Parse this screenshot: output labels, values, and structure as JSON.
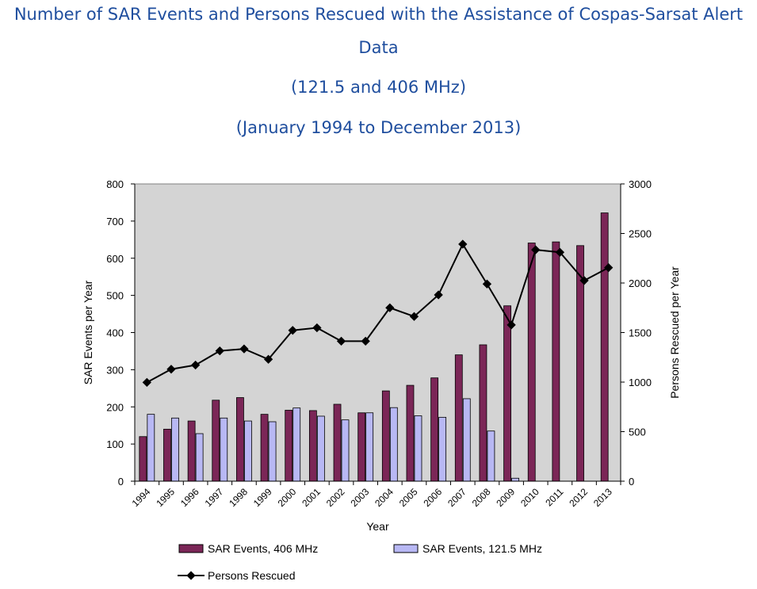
{
  "titles": {
    "line1": "Number of SAR Events and Persons Rescued with the Assistance of Cospas-Sarsat Alert",
    "line2": "Data",
    "line3": "(121.5 and 406 MHz)",
    "line4": "(January 1994 to December 2013)"
  },
  "colors": {
    "title": "#1f4e9e",
    "plot_bg": "#d4d4d4",
    "bar_406": "#7b2657",
    "bar_121": "#b8b8f4",
    "line": "#000000"
  },
  "chart_data": {
    "type": "bar",
    "xlabel": "Year",
    "ylabel": "SAR Events per Year",
    "y2label": "Persons Rescued per Year",
    "ylim": [
      0,
      800
    ],
    "y2lim": [
      0,
      3000
    ],
    "yticks": [
      0,
      100,
      200,
      300,
      400,
      500,
      600,
      700,
      800
    ],
    "y2ticks": [
      0,
      500,
      1000,
      1500,
      2000,
      2500,
      3000
    ],
    "grid": false,
    "legend_position": "bottom",
    "categories": [
      "1994",
      "1995",
      "1996",
      "1997",
      "1998",
      "1999",
      "2000",
      "2001",
      "2002",
      "2003",
      "2004",
      "2005",
      "2006",
      "2007",
      "2008",
      "2009",
      "2010",
      "2011",
      "2012",
      "2013"
    ],
    "series": [
      {
        "name": "SAR Events, 406 MHz",
        "type": "bar",
        "axis": "left",
        "values": [
          120,
          140,
          162,
          218,
          225,
          180,
          191,
          190,
          207,
          184,
          243,
          258,
          278,
          340,
          367,
          472,
          641,
          644,
          634,
          722
        ]
      },
      {
        "name": "SAR Events, 121.5 MHz",
        "type": "bar",
        "axis": "left",
        "values": [
          180,
          170,
          128,
          170,
          162,
          160,
          197,
          175,
          165,
          184,
          198,
          176,
          172,
          222,
          135,
          8,
          0,
          0,
          0,
          0
        ]
      },
      {
        "name": "Persons Rescued",
        "type": "line",
        "axis": "right",
        "values": [
          997,
          1130,
          1172,
          1315,
          1335,
          1230,
          1522,
          1548,
          1413,
          1413,
          1750,
          1662,
          1880,
          2392,
          1990,
          1577,
          2335,
          2310,
          2025,
          2155
        ]
      }
    ]
  }
}
